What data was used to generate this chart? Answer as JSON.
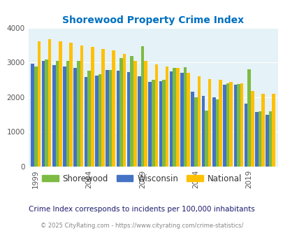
{
  "title": "Shorewood Property Crime Index",
  "years": [
    1999,
    2000,
    2001,
    2002,
    2003,
    2004,
    2005,
    2006,
    2007,
    2008,
    2009,
    2010,
    2011,
    2012,
    2013,
    2014,
    2015,
    2016,
    2017,
    2018,
    2019,
    2020,
    2021
  ],
  "shorewood": [
    2880,
    3080,
    3050,
    3040,
    3050,
    2750,
    2650,
    2780,
    3130,
    3190,
    3470,
    2500,
    2500,
    2850,
    2870,
    2000,
    1600,
    1940,
    2390,
    2380,
    2800,
    1580,
    1580
  ],
  "wisconsin": [
    2970,
    3050,
    2920,
    2880,
    2840,
    2580,
    2620,
    2770,
    2750,
    2720,
    2600,
    2440,
    2460,
    2740,
    2700,
    2160,
    2040,
    1990,
    2350,
    2360,
    1820,
    1560,
    1480
  ],
  "national": [
    3600,
    3660,
    3600,
    3560,
    3490,
    3450,
    3390,
    3340,
    3250,
    3050,
    3050,
    2940,
    2890,
    2840,
    2690,
    2590,
    2520,
    2490,
    2440,
    2400,
    2180,
    2100,
    2090
  ],
  "bar_order": [
    "wisconsin",
    "shorewood",
    "national"
  ],
  "wisconsin_color": "#4472c4",
  "shorewood_color": "#7dbb42",
  "national_color": "#ffc000",
  "bg_color": "#e5f2f7",
  "title_color": "#0070c0",
  "subtitle": "Crime Index corresponds to incidents per 100,000 inhabitants",
  "subtitle_color": "#1a1a6e",
  "footer": "© 2025 CityRating.com - https://www.cityrating.com/crime-statistics/",
  "footer_color": "#888888",
  "xtick_labels": [
    "1999",
    "2004",
    "2009",
    "2014",
    "2019"
  ],
  "xtick_positions": [
    0,
    5,
    10,
    15,
    20
  ],
  "ylim": [
    0,
    4000
  ],
  "yticks": [
    0,
    1000,
    2000,
    3000,
    4000
  ],
  "bar_width": 0.3
}
